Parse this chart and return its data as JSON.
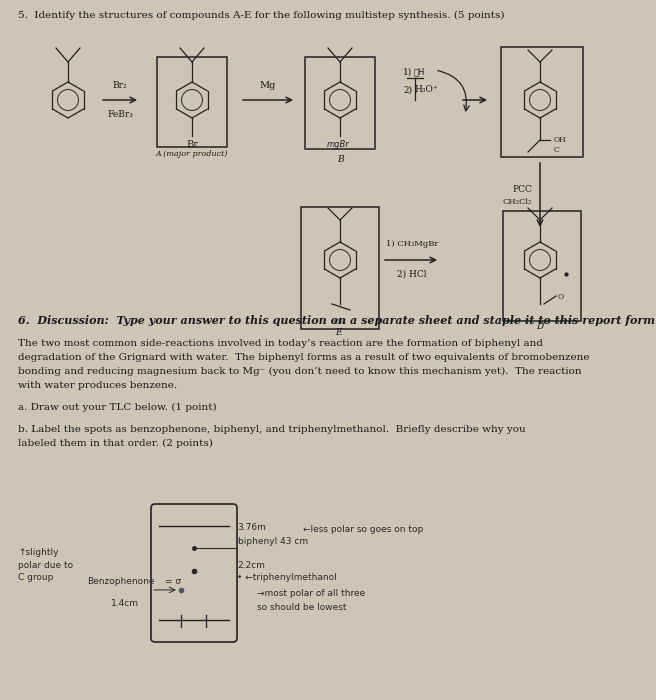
{
  "bg_color": "#cdc5b5",
  "text_color": "#1a1a1a",
  "dark": "#222222",
  "q5_header": "5.  Identify the structures of compounds A-E for the following multistep synthesis. (5 points)",
  "q6_header": "6.  Discussion:  Type your answer to this question on a separate sheet and staple it to this report form.",
  "para1_l1": "The two most common side-reactions involved in today’s reaction are the formation of biphenyl and",
  "para1_l2": "degradation of the Grignard with water.  The biphenyl forms as a result of two equivalents of bromobenzene",
  "para1_l3": "bonding and reducing magnesium back to Mg⁻ (you don’t need to know this mechanism yet).  The reaction",
  "para1_l4": "with water produces benzene.",
  "qa": "a. Draw out your TLC below. (1 point)",
  "qb1": "b. Label the spots as benzophenone, biphenyl, and triphenylmethanol.  Briefly describe why you",
  "qb2": "labeled them in that order. (2 points)"
}
